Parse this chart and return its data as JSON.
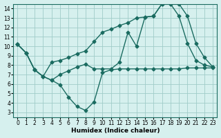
{
  "xlabel": "Humidex (Indice chaleur)",
  "ylabel": "",
  "bg_color": "#d6f0ee",
  "grid_color": "#a0ccc8",
  "line_color": "#1a6b60",
  "xlim": [
    -0.5,
    23.5
  ],
  "ylim": [
    2.5,
    14.5
  ],
  "xticks": [
    0,
    1,
    2,
    3,
    4,
    5,
    6,
    7,
    8,
    9,
    10,
    11,
    12,
    13,
    14,
    15,
    16,
    17,
    18,
    19,
    20,
    21,
    22,
    23
  ],
  "yticks": [
    3,
    4,
    5,
    6,
    7,
    8,
    9,
    10,
    11,
    12,
    13,
    14
  ],
  "line1": {
    "x": [
      0,
      1,
      2,
      3,
      4,
      5,
      6,
      7,
      8,
      9,
      10,
      11,
      12,
      13,
      14,
      15,
      16,
      17,
      18,
      19,
      20,
      21,
      22,
      23
    ],
    "y": [
      10.2,
      9.3,
      7.5,
      6.8,
      6.4,
      5.9,
      4.6,
      3.6,
      3.2,
      4.1,
      7.2,
      7.5,
      7.6,
      7.6,
      7.6,
      7.6,
      7.6,
      7.6,
      7.6,
      7.6,
      7.7,
      7.7,
      7.7,
      7.7
    ]
  },
  "line2": {
    "x": [
      0,
      1,
      2,
      3,
      4,
      5,
      6,
      7,
      8,
      9,
      10,
      11,
      12,
      13,
      14,
      15,
      16,
      17,
      18,
      19,
      20,
      21,
      22,
      23
    ],
    "y": [
      10.2,
      9.3,
      7.5,
      6.8,
      6.4,
      7.0,
      7.4,
      7.8,
      8.1,
      7.6,
      7.6,
      7.6,
      8.3,
      11.5,
      10.0,
      13.1,
      13.2,
      14.5,
      14.5,
      13.2,
      10.3,
      8.5,
      8.0,
      7.8
    ]
  },
  "line3": {
    "x": [
      0,
      1,
      2,
      3,
      4,
      5,
      6,
      7,
      8,
      9,
      10,
      11,
      12,
      13,
      14,
      15,
      16,
      17,
      18,
      19,
      20,
      21,
      22,
      23
    ],
    "y": [
      10.2,
      9.3,
      7.5,
      6.8,
      8.3,
      8.5,
      8.8,
      9.2,
      9.5,
      10.5,
      11.5,
      11.8,
      12.2,
      12.5,
      13.0,
      13.1,
      13.2,
      14.5,
      14.5,
      14.5,
      13.2,
      10.3,
      8.8,
      7.8
    ]
  }
}
